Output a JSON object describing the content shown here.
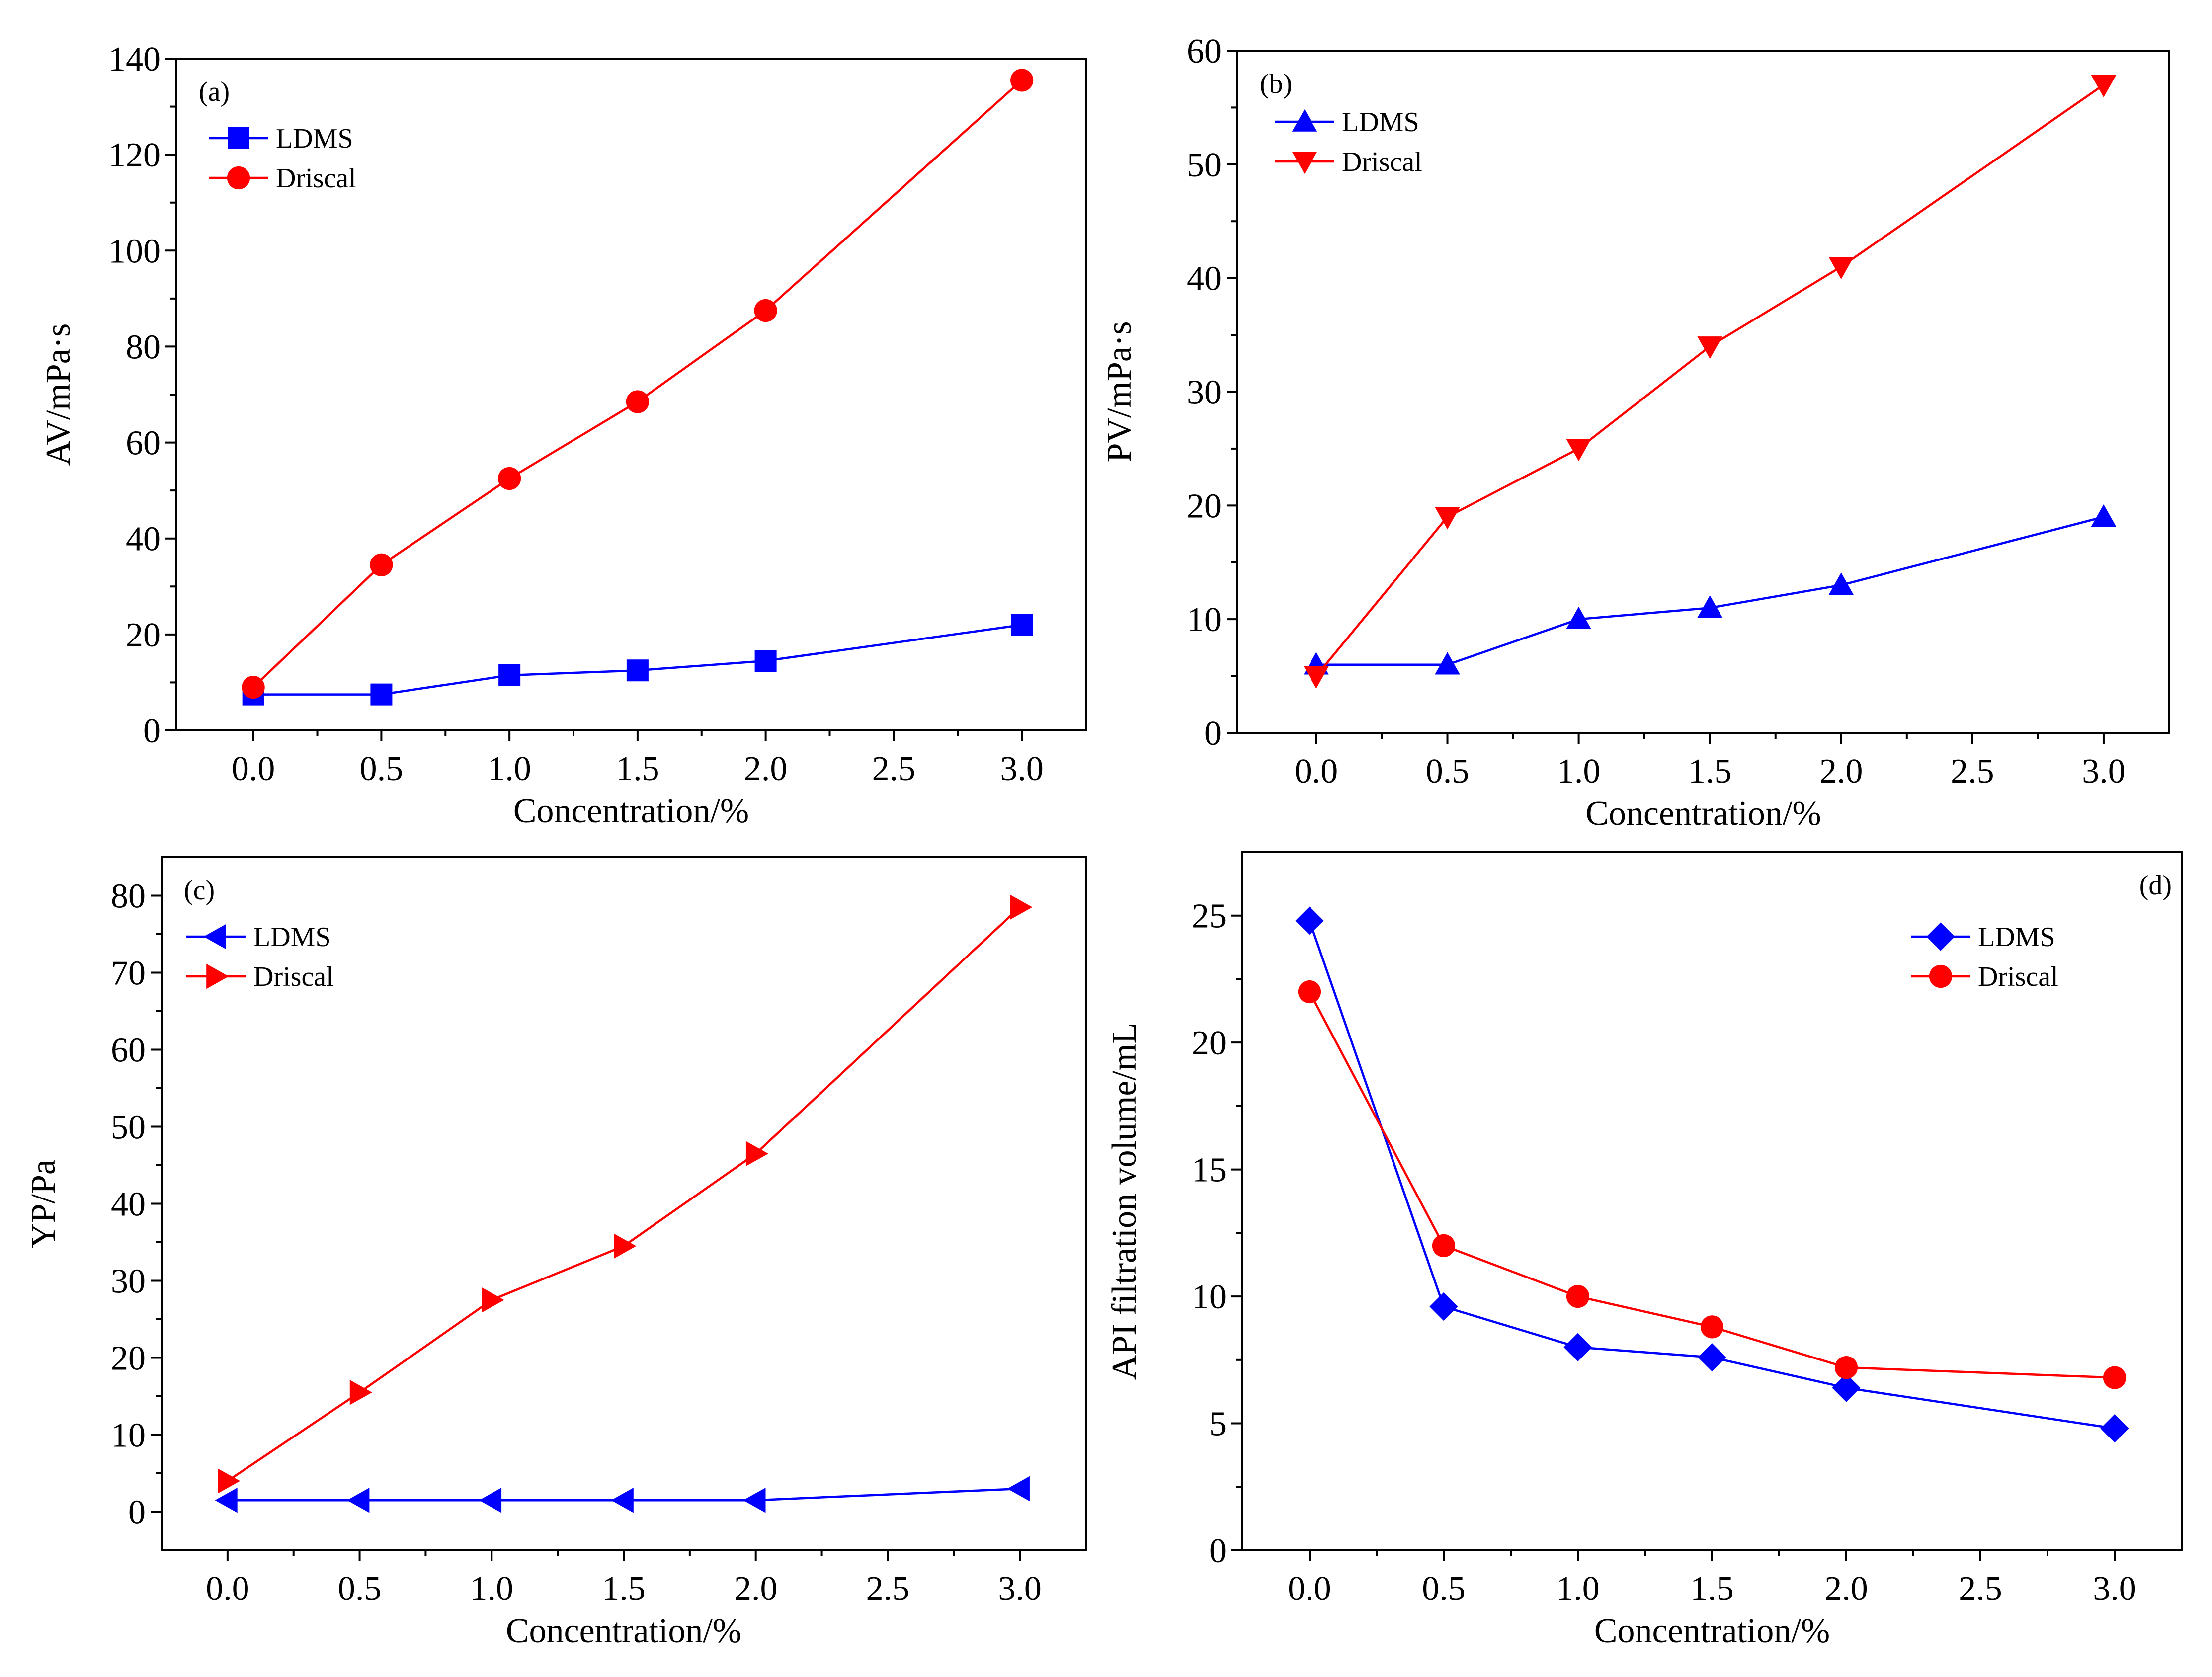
{
  "chart_data": [
    {
      "type": "line",
      "panel": "(a)",
      "xlabel": "Concentration/%",
      "ylabel": "AV/mPa·s",
      "xlim": [
        -0.3,
        3.25
      ],
      "ylim": [
        0,
        140
      ],
      "xticks": [
        0.0,
        0.5,
        1.0,
        1.5,
        2.0,
        2.5,
        3.0
      ],
      "xtick_labels": [
        "0.0",
        "0.5",
        "1.0",
        "1.5",
        "2.0",
        "2.5",
        "3.0"
      ],
      "yticks": [
        0,
        20,
        40,
        60,
        80,
        100,
        120,
        140
      ],
      "ytick_labels": [
        "0",
        "20",
        "40",
        "60",
        "80",
        "100",
        "120",
        "140"
      ],
      "legend_position": "top-left",
      "series": [
        {
          "name": "LDMS",
          "color": "#0000ff",
          "marker": "square",
          "x": [
            0,
            0.5,
            1.0,
            1.5,
            2.0,
            3.0
          ],
          "values": [
            7.5,
            7.5,
            11.5,
            12.5,
            14.5,
            22
          ]
        },
        {
          "name": "Driscal",
          "color": "#ff0000",
          "marker": "circle",
          "x": [
            0,
            0.5,
            1.0,
            1.5,
            2.0,
            3.0
          ],
          "values": [
            9,
            34.5,
            52.5,
            68.5,
            87.5,
            135.5
          ]
        }
      ]
    },
    {
      "type": "line",
      "panel": "(b)",
      "xlabel": "Concentration/%",
      "ylabel": "PV/mPa·s",
      "xlim": [
        -0.3,
        3.25
      ],
      "ylim": [
        0,
        60
      ],
      "xticks": [
        0.0,
        0.5,
        1.0,
        1.5,
        2.0,
        2.5,
        3.0
      ],
      "xtick_labels": [
        "0.0",
        "0.5",
        "1.0",
        "1.5",
        "2.0",
        "2.5",
        "3.0"
      ],
      "yticks": [
        0,
        10,
        20,
        30,
        40,
        50,
        60
      ],
      "ytick_labels": [
        "0",
        "10",
        "20",
        "30",
        "40",
        "50",
        "60"
      ],
      "legend_position": "top-left",
      "series": [
        {
          "name": "LDMS",
          "color": "#0000ff",
          "marker": "triangle-up",
          "x": [
            0,
            0.5,
            1.0,
            1.5,
            2.0,
            3.0
          ],
          "values": [
            6,
            6,
            10,
            11,
            13,
            19
          ]
        },
        {
          "name": "Driscal",
          "color": "#ff0000",
          "marker": "triangle-down",
          "x": [
            0,
            0.5,
            1.0,
            1.5,
            2.0,
            3.0
          ],
          "values": [
            5,
            19,
            25,
            34,
            41,
            57
          ]
        }
      ]
    },
    {
      "type": "line",
      "panel": "(c)",
      "xlabel": "Concentration/%",
      "ylabel": "YP/Pa",
      "xlim": [
        -0.25,
        3.25
      ],
      "ylim": [
        -5,
        85
      ],
      "xticks": [
        0.0,
        0.5,
        1.0,
        1.5,
        2.0,
        2.5,
        3.0
      ],
      "xtick_labels": [
        "0.0",
        "0.5",
        "1.0",
        "1.5",
        "2.0",
        "2.5",
        "3.0"
      ],
      "yticks": [
        0,
        10,
        20,
        30,
        40,
        50,
        60,
        70,
        80
      ],
      "ytick_labels": [
        "0",
        "10",
        "20",
        "30",
        "40",
        "50",
        "60",
        "70",
        "80"
      ],
      "legend_position": "top-left",
      "series": [
        {
          "name": "LDMS",
          "color": "#0000ff",
          "marker": "triangle-left",
          "x": [
            0,
            0.5,
            1.0,
            1.5,
            2.0,
            3.0
          ],
          "values": [
            1.5,
            1.5,
            1.5,
            1.5,
            1.5,
            3
          ]
        },
        {
          "name": "Driscal",
          "color": "#ff0000",
          "marker": "triangle-right",
          "x": [
            0,
            0.5,
            1.0,
            1.5,
            2.0,
            3.0
          ],
          "values": [
            4,
            15.5,
            27.5,
            34.5,
            46.5,
            78.5
          ]
        }
      ]
    },
    {
      "type": "line",
      "panel": "(d)",
      "xlabel": "Concentration/%",
      "ylabel": "API filtration volume/mL",
      "xlim": [
        -0.25,
        3.25
      ],
      "ylim": [
        0,
        27.5
      ],
      "xticks": [
        0.0,
        0.5,
        1.0,
        1.5,
        2.0,
        2.5,
        3.0
      ],
      "xtick_labels": [
        "0.0",
        "0.5",
        "1.0",
        "1.5",
        "2.0",
        "2.5",
        "3.0"
      ],
      "yticks": [
        0,
        5,
        10,
        15,
        20,
        25
      ],
      "ytick_labels": [
        "0",
        "5",
        "10",
        "15",
        "20",
        "25"
      ],
      "legend_position": "top-right",
      "series": [
        {
          "name": "LDMS",
          "color": "#0000ff",
          "marker": "diamond",
          "x": [
            0,
            0.5,
            1.0,
            1.5,
            2.0,
            3.0
          ],
          "values": [
            24.8,
            9.6,
            8.0,
            7.6,
            6.4,
            4.8
          ]
        },
        {
          "name": "Driscal",
          "color": "#ff0000",
          "marker": "circle",
          "x": [
            0,
            0.5,
            1.0,
            1.5,
            2.0,
            3.0
          ],
          "values": [
            22.0,
            12.0,
            10.0,
            8.8,
            7.2,
            6.8
          ]
        }
      ]
    }
  ]
}
